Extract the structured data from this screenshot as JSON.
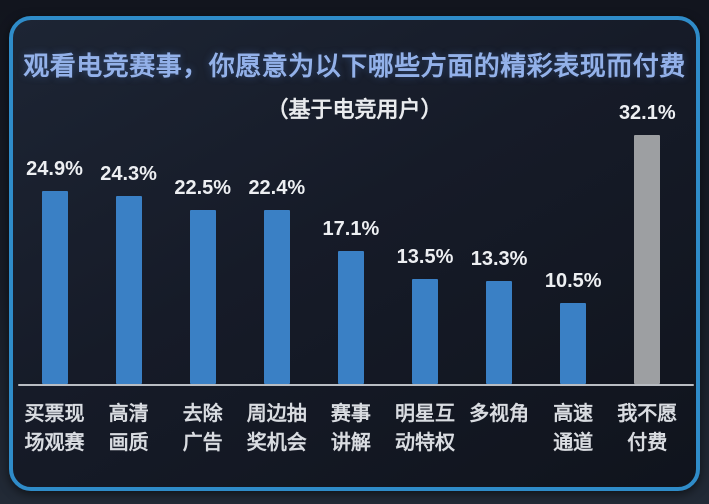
{
  "header": {
    "title": "观看电竞赛事，你愿意为以下哪些方面的精彩表现而付费",
    "subtitle": "（基于电竞用户）"
  },
  "colors": {
    "bar_blue": "#3a80c5",
    "bar_gray": "#9d9fa2",
    "card_border": "#2f8cc9",
    "title_text": "#93b1e9",
    "baseline": "#b9bdc3"
  },
  "chart_data": {
    "type": "bar",
    "title": "观看电竞赛事，你愿意为以下哪些方面的精彩表现而付费",
    "subtitle": "（基于电竞用户）",
    "categories": [
      "买票现场观赛",
      "高清画质",
      "去除广告",
      "周边抽奖机会",
      "赛事讲解",
      "明星互动特权",
      "多视角",
      "高速通道",
      "我不愿付费"
    ],
    "category_lines": [
      [
        "买票现",
        "场观赛"
      ],
      [
        "高清",
        "画质"
      ],
      [
        "去除",
        "广告"
      ],
      [
        "周边抽",
        "奖机会"
      ],
      [
        "赛事",
        "讲解"
      ],
      [
        "明星互",
        "动特权"
      ],
      [
        "多视角"
      ],
      [
        "高速",
        "通道"
      ],
      [
        "我不愿",
        "付费"
      ]
    ],
    "values": [
      24.9,
      24.3,
      22.5,
      22.4,
      17.1,
      13.5,
      13.3,
      10.5,
      32.1
    ],
    "value_labels": [
      "24.9%",
      "24.3%",
      "22.5%",
      "22.4%",
      "17.1%",
      "13.5%",
      "13.3%",
      "10.5%",
      "32.1%"
    ],
    "highlight_index": 8,
    "xlabel": "",
    "ylabel": "",
    "ylim": [
      0,
      35
    ],
    "grid": false,
    "legend": "none",
    "unit": "%"
  }
}
